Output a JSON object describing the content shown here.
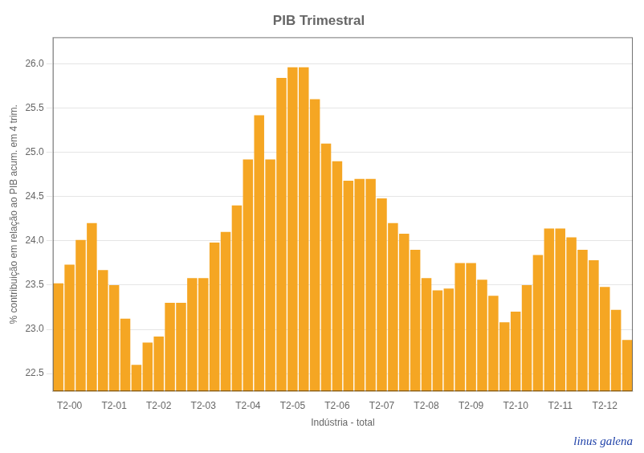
{
  "chart_data": {
    "type": "bar",
    "title": "PIB Trimestral",
    "xlabel": "Indústria - total",
    "ylabel": "% contribuição em relação ao PIB acum. em 4 trim.",
    "color": "#F5A623",
    "categories": [
      null,
      "T2-00",
      null,
      null,
      null,
      "T2-01",
      null,
      null,
      null,
      "T2-02",
      null,
      null,
      null,
      "T2-03",
      null,
      null,
      null,
      "T2-04",
      null,
      null,
      null,
      "T2-05",
      null,
      null,
      null,
      "T2-06",
      null,
      null,
      null,
      "T2-07",
      null,
      null,
      null,
      "T2-08",
      null,
      null,
      null,
      "T2-09",
      null,
      null,
      null,
      "T2-10",
      null,
      null,
      null,
      "T2-11",
      null,
      null,
      null,
      "T2-12",
      null,
      null
    ],
    "values": [
      23.52,
      23.73,
      24.01,
      24.2,
      23.67,
      23.5,
      23.12,
      22.6,
      22.85,
      22.92,
      23.3,
      23.3,
      23.58,
      23.58,
      23.98,
      24.1,
      24.4,
      24.92,
      25.42,
      24.92,
      25.84,
      25.96,
      25.96,
      25.6,
      25.1,
      24.9,
      24.68,
      24.7,
      24.7,
      24.48,
      24.2,
      24.08,
      23.9,
      23.58,
      23.44,
      23.46,
      23.75,
      23.75,
      23.56,
      23.38,
      23.08,
      23.2,
      23.5,
      23.84,
      24.14,
      24.14,
      24.04,
      23.9,
      23.78,
      23.48,
      23.22,
      22.88
    ],
    "ylim": [
      22.3,
      26.3
    ],
    "yticks": [
      22.5,
      {
        "value": 23,
        "label": "23.0"
      },
      23.5,
      {
        "value": 24,
        "label": "24.0"
      },
      24.5,
      {
        "value": 25,
        "label": "25.0"
      },
      25.5,
      {
        "value": 26,
        "label": "26.0"
      }
    ],
    "grid": true,
    "annotations": [
      "linus galena"
    ]
  }
}
